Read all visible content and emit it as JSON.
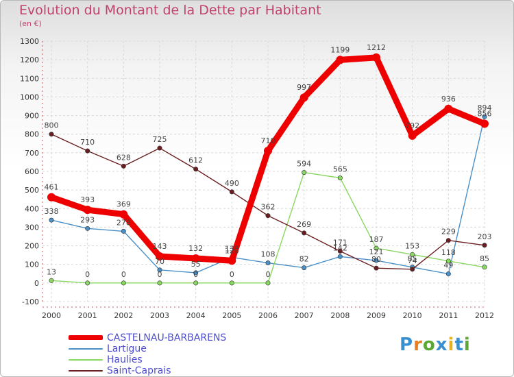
{
  "title": "Evolution du Montant de la Dette par Habitant",
  "subtitle": "(en €)",
  "logo": "Proxiti",
  "chart_data": {
    "type": "line",
    "title": "Evolution du Montant de la Dette par Habitant",
    "unit": "(en €)",
    "x": [
      "2000",
      "2001",
      "2002",
      "2003",
      "2004",
      "2005",
      "2006",
      "2007",
      "2008",
      "2009",
      "2010",
      "2011",
      "2012"
    ],
    "ylim": [
      -100,
      1300
    ],
    "yticks": [
      -100,
      0,
      100,
      200,
      300,
      400,
      500,
      600,
      700,
      800,
      900,
      1000,
      1100,
      1200,
      1300
    ],
    "grid": true,
    "legend_position": "bottom-left",
    "series": [
      {
        "name": "Lartigue",
        "color": "#4a90c8",
        "values": [
          338,
          293,
          278,
          70,
          55,
          138,
          108,
          82,
          142,
          121,
          85,
          49,
          894
        ]
      },
      {
        "name": "Haulies",
        "color": "#88d760",
        "values": [
          13,
          0,
          0,
          0,
          0,
          0,
          0,
          594,
          565,
          187,
          153,
          118,
          85
        ]
      },
      {
        "name": "Saint-Caprais",
        "color": "#6b1e22",
        "values": [
          800,
          710,
          628,
          725,
          612,
          490,
          362,
          269,
          171,
          80,
          74,
          229,
          203
        ]
      },
      {
        "name": "CASTELNAU-BARBARENS",
        "color": "#ee0000",
        "values": [
          461,
          393,
          369,
          143,
          132,
          120,
          710,
          997,
          1199,
          1212,
          792,
          936,
          856
        ]
      }
    ],
    "legend_order": [
      "CASTELNAU-BARBARENS",
      "Lartigue",
      "Haulies",
      "Saint-Caprais"
    ]
  }
}
